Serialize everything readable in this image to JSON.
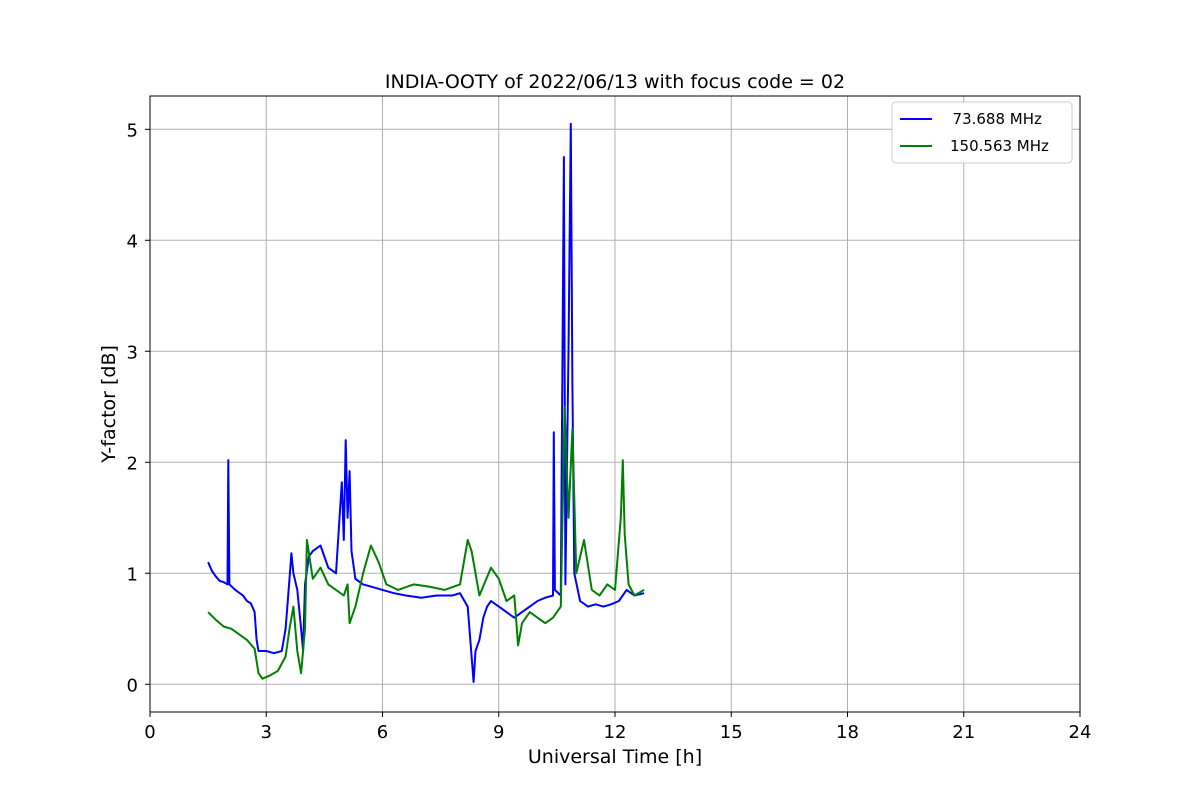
{
  "chart_data": {
    "type": "line",
    "title": "INDIA-OOTY of 2022/06/13 with focus code = 02",
    "xlabel": "Universal Time [h]",
    "ylabel": "Y-factor [dB]",
    "xlim": [
      0,
      24
    ],
    "ylim": [
      -0.25,
      5.3
    ],
    "xticks": [
      0,
      3,
      6,
      9,
      12,
      15,
      18,
      21,
      24
    ],
    "yticks": [
      0,
      1,
      2,
      3,
      4,
      5
    ],
    "grid": true,
    "legend_position": "top-right",
    "series": [
      {
        "name": "  73.688 MHz",
        "color": "#0000ff",
        "points": [
          [
            1.5,
            1.1
          ],
          [
            1.6,
            1.02
          ],
          [
            1.7,
            0.97
          ],
          [
            1.8,
            0.93
          ],
          [
            1.9,
            0.92
          ],
          [
            2.0,
            0.9
          ],
          [
            2.02,
            2.02
          ],
          [
            2.05,
            0.9
          ],
          [
            2.2,
            0.85
          ],
          [
            2.4,
            0.8
          ],
          [
            2.5,
            0.75
          ],
          [
            2.6,
            0.73
          ],
          [
            2.7,
            0.65
          ],
          [
            2.75,
            0.4
          ],
          [
            2.8,
            0.3
          ],
          [
            3.0,
            0.3
          ],
          [
            3.2,
            0.28
          ],
          [
            3.4,
            0.3
          ],
          [
            3.5,
            0.5
          ],
          [
            3.6,
            0.95
          ],
          [
            3.65,
            1.18
          ],
          [
            3.7,
            1.0
          ],
          [
            3.8,
            0.85
          ],
          [
            3.9,
            0.5
          ],
          [
            3.95,
            0.3
          ],
          [
            4.0,
            0.9
          ],
          [
            4.1,
            1.15
          ],
          [
            4.2,
            1.2
          ],
          [
            4.4,
            1.25
          ],
          [
            4.6,
            1.05
          ],
          [
            4.8,
            1.0
          ],
          [
            4.95,
            1.82
          ],
          [
            5.0,
            1.3
          ],
          [
            5.05,
            2.2
          ],
          [
            5.1,
            1.5
          ],
          [
            5.15,
            1.92
          ],
          [
            5.2,
            1.2
          ],
          [
            5.3,
            0.95
          ],
          [
            5.5,
            0.9
          ],
          [
            5.7,
            0.88
          ],
          [
            6.0,
            0.85
          ],
          [
            6.3,
            0.82
          ],
          [
            6.6,
            0.8
          ],
          [
            7.0,
            0.78
          ],
          [
            7.4,
            0.8
          ],
          [
            7.8,
            0.8
          ],
          [
            8.0,
            0.82
          ],
          [
            8.2,
            0.7
          ],
          [
            8.3,
            0.25
          ],
          [
            8.35,
            0.02
          ],
          [
            8.4,
            0.3
          ],
          [
            8.5,
            0.4
          ],
          [
            8.6,
            0.6
          ],
          [
            8.7,
            0.7
          ],
          [
            8.8,
            0.75
          ],
          [
            9.0,
            0.7
          ],
          [
            9.2,
            0.65
          ],
          [
            9.4,
            0.6
          ],
          [
            9.6,
            0.65
          ],
          [
            9.8,
            0.7
          ],
          [
            10.0,
            0.75
          ],
          [
            10.2,
            0.78
          ],
          [
            10.4,
            0.8
          ],
          [
            10.42,
            2.27
          ],
          [
            10.45,
            0.85
          ],
          [
            10.6,
            0.8
          ],
          [
            10.68,
            4.75
          ],
          [
            10.72,
            0.9
          ],
          [
            10.8,
            3.0
          ],
          [
            10.86,
            5.05
          ],
          [
            10.9,
            2.7
          ],
          [
            10.95,
            1.0
          ],
          [
            11.1,
            0.75
          ],
          [
            11.3,
            0.7
          ],
          [
            11.5,
            0.72
          ],
          [
            11.7,
            0.7
          ],
          [
            11.9,
            0.72
          ],
          [
            12.1,
            0.75
          ],
          [
            12.3,
            0.85
          ],
          [
            12.5,
            0.8
          ],
          [
            12.75,
            0.82
          ]
        ]
      },
      {
        "name": "150.563 MHz",
        "color": "#008000",
        "points": [
          [
            1.5,
            0.65
          ],
          [
            1.7,
            0.58
          ],
          [
            1.9,
            0.52
          ],
          [
            2.1,
            0.5
          ],
          [
            2.3,
            0.45
          ],
          [
            2.5,
            0.4
          ],
          [
            2.7,
            0.32
          ],
          [
            2.8,
            0.1
          ],
          [
            2.9,
            0.05
          ],
          [
            3.1,
            0.08
          ],
          [
            3.3,
            0.12
          ],
          [
            3.5,
            0.25
          ],
          [
            3.6,
            0.5
          ],
          [
            3.7,
            0.7
          ],
          [
            3.8,
            0.3
          ],
          [
            3.9,
            0.1
          ],
          [
            4.0,
            0.5
          ],
          [
            4.05,
            1.3
          ],
          [
            4.2,
            0.95
          ],
          [
            4.4,
            1.05
          ],
          [
            4.6,
            0.9
          ],
          [
            4.8,
            0.85
          ],
          [
            5.0,
            0.8
          ],
          [
            5.1,
            0.9
          ],
          [
            5.15,
            0.55
          ],
          [
            5.3,
            0.7
          ],
          [
            5.5,
            1.0
          ],
          [
            5.7,
            1.25
          ],
          [
            5.9,
            1.1
          ],
          [
            6.1,
            0.9
          ],
          [
            6.4,
            0.85
          ],
          [
            6.8,
            0.9
          ],
          [
            7.2,
            0.88
          ],
          [
            7.6,
            0.85
          ],
          [
            8.0,
            0.9
          ],
          [
            8.2,
            1.3
          ],
          [
            8.3,
            1.2
          ],
          [
            8.5,
            0.8
          ],
          [
            8.8,
            1.05
          ],
          [
            9.0,
            0.95
          ],
          [
            9.2,
            0.75
          ],
          [
            9.4,
            0.8
          ],
          [
            9.5,
            0.35
          ],
          [
            9.6,
            0.55
          ],
          [
            9.8,
            0.65
          ],
          [
            10.0,
            0.6
          ],
          [
            10.2,
            0.55
          ],
          [
            10.4,
            0.6
          ],
          [
            10.6,
            0.7
          ],
          [
            10.7,
            2.5
          ],
          [
            10.8,
            1.5
          ],
          [
            10.9,
            2.3
          ],
          [
            11.0,
            1.0
          ],
          [
            11.2,
            1.3
          ],
          [
            11.4,
            0.85
          ],
          [
            11.6,
            0.8
          ],
          [
            11.8,
            0.9
          ],
          [
            12.0,
            0.85
          ],
          [
            12.15,
            1.5
          ],
          [
            12.2,
            2.02
          ],
          [
            12.25,
            1.35
          ],
          [
            12.35,
            0.9
          ],
          [
            12.5,
            0.8
          ],
          [
            12.75,
            0.85
          ]
        ]
      }
    ]
  }
}
